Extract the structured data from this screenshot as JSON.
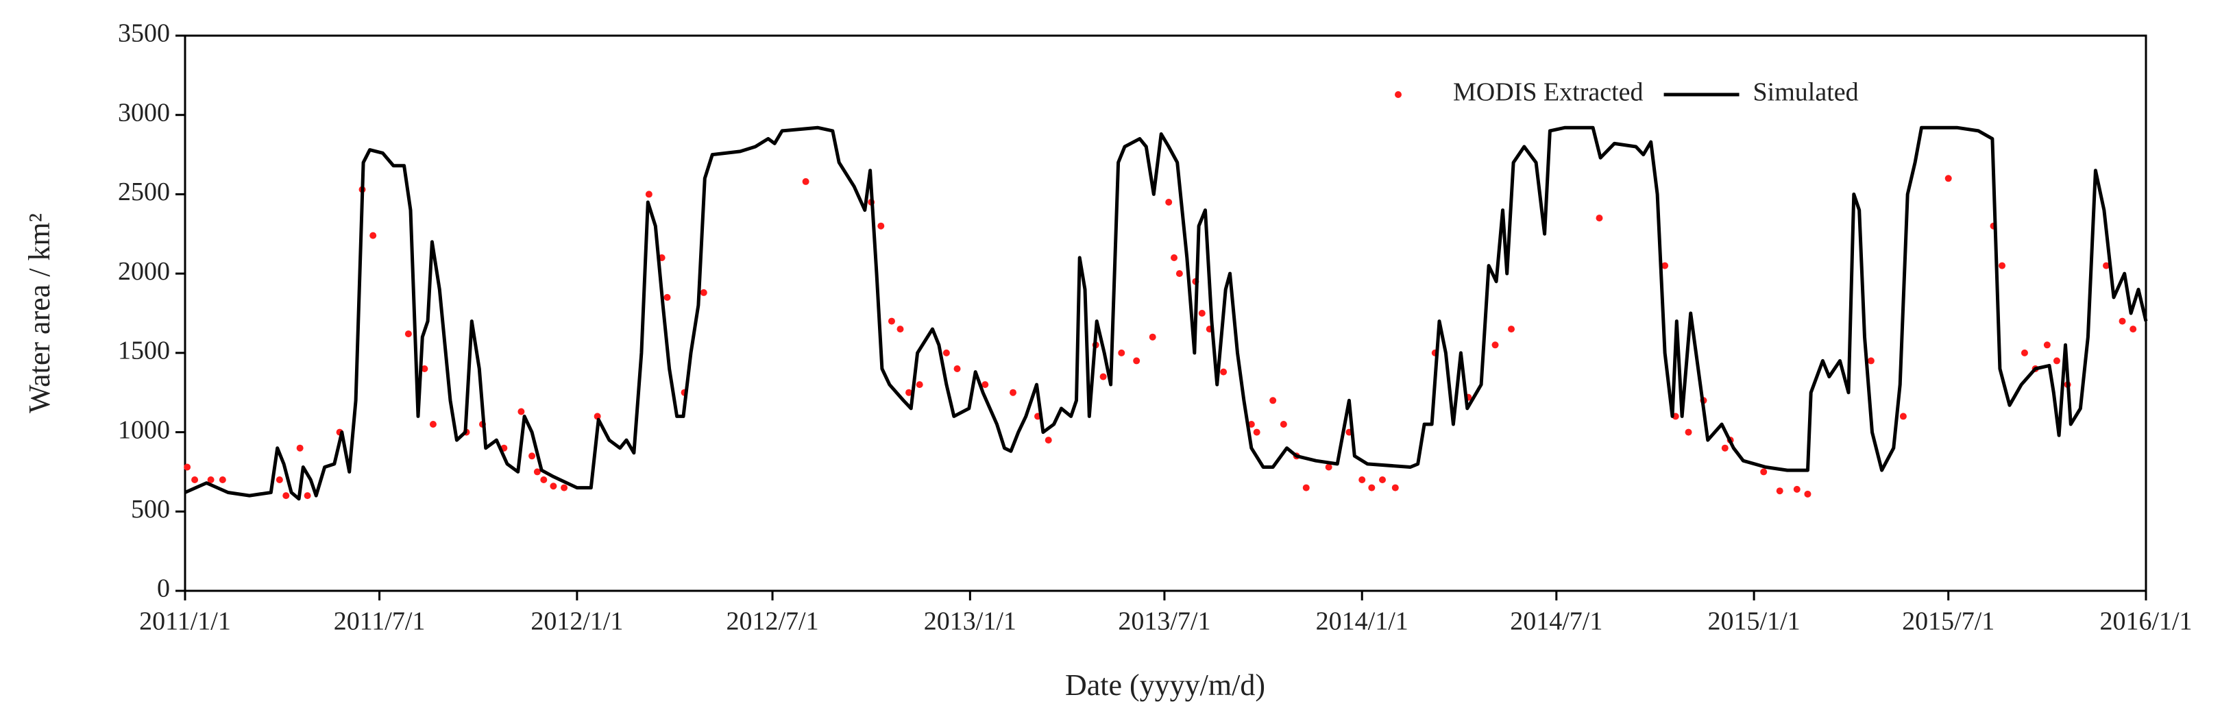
{
  "chart_data": {
    "type": "line",
    "xlabel": "Date (yyyy/m/d)",
    "ylabel": "Water area / km²",
    "xlim": [
      "2011/1/1",
      "2016/1/1"
    ],
    "xticks": [
      "2011/1/1",
      "2011/7/1",
      "2012/1/1",
      "2012/7/1",
      "2013/1/1",
      "2013/7/1",
      "2014/1/1",
      "2014/7/1",
      "2015/1/1",
      "2015/7/1",
      "2016/1/1"
    ],
    "ylim": [
      0,
      3500
    ],
    "yticks": [
      0,
      500,
      1000,
      1500,
      2000,
      2500,
      3000,
      3500
    ],
    "legend": "upper right",
    "series": [
      {
        "name": "MODIS Extracted",
        "type": "scatter",
        "color": "#ff1a1a",
        "x": [
          "2011/1/3",
          "2011/1/10",
          "2011/1/25",
          "2011/2/5",
          "2011/3/30",
          "2011/4/5",
          "2011/4/18",
          "2011/4/25",
          "2011/5/25",
          "2011/6/15",
          "2011/6/25",
          "2011/7/28",
          "2011/8/12",
          "2011/8/20",
          "2011/9/20",
          "2011/10/5",
          "2011/10/25",
          "2011/11/10",
          "2011/11/20",
          "2011/11/25",
          "2011/12/1",
          "2011/12/10",
          "2011/12/20",
          "2012/1/20",
          "2012/3/8",
          "2012/3/20",
          "2012/3/25",
          "2012/4/10",
          "2012/4/28",
          "2012/8/1",
          "2012/10/1",
          "2012/10/10",
          "2012/10/20",
          "2012/10/28",
          "2012/11/5",
          "2012/11/15",
          "2012/12/10",
          "2012/12/20",
          "2013/1/15",
          "2013/2/10",
          "2013/3/5",
          "2013/3/15",
          "2013/4/28",
          "2013/5/5",
          "2013/5/22",
          "2013/6/5",
          "2013/6/20",
          "2013/7/5",
          "2013/7/10",
          "2013/7/15",
          "2013/7/30",
          "2013/8/5",
          "2013/8/12",
          "2013/8/25",
          "2013/9/20",
          "2013/9/25",
          "2013/10/10",
          "2013/10/20",
          "2013/11/1",
          "2013/11/10",
          "2013/12/1",
          "2013/12/20",
          "2014/1/1",
          "2014/1/10",
          "2014/1/20",
          "2014/2/1",
          "2014/3/10",
          "2014/4/10",
          "2014/5/5",
          "2014/5/20",
          "2014/8/10",
          "2014/10/10",
          "2014/10/20",
          "2014/11/1",
          "2014/11/15",
          "2014/12/5",
          "2014/12/10",
          "2015/1/10",
          "2015/1/25",
          "2015/2/10",
          "2015/2/20",
          "2015/4/20",
          "2015/5/20",
          "2015/7/1",
          "2015/8/12",
          "2015/8/20",
          "2015/9/10",
          "2015/9/20",
          "2015/10/1",
          "2015/10/10",
          "2015/10/20",
          "2015/11/25",
          "2015/12/10",
          "2015/12/20"
        ],
        "values": [
          780,
          700,
          700,
          700,
          700,
          600,
          900,
          600,
          1000,
          2530,
          2240,
          1620,
          1400,
          1050,
          1000,
          1050,
          900,
          1130,
          850,
          750,
          700,
          660,
          650,
          1100,
          2500,
          2100,
          1850,
          1250,
          1880,
          2580,
          2450,
          2300,
          1700,
          1650,
          1250,
          1300,
          1500,
          1400,
          1300,
          1250,
          1100,
          950,
          1550,
          1350,
          1500,
          1450,
          1600,
          2450,
          2100,
          2000,
          1950,
          1750,
          1650,
          1380,
          1050,
          1000,
          1200,
          1050,
          850,
          650,
          780,
          1000,
          700,
          650,
          700,
          650,
          1500,
          1220,
          1550,
          1650,
          2350,
          2050,
          1100,
          1000,
          1200,
          900,
          950,
          750,
          630,
          640,
          610,
          1450,
          1100,
          2600,
          2300,
          2050,
          1500,
          1400,
          1550,
          1450,
          1300,
          2050,
          1700,
          1650
        ]
      },
      {
        "name": "Simulated",
        "type": "line",
        "color": "#000000",
        "x": [
          "2011/1/1",
          "2011/1/21",
          "2011/2/10",
          "2011/3/2",
          "2011/3/22",
          "2011/3/28",
          "2011/4/3",
          "2011/4/10",
          "2011/4/17",
          "2011/4/21",
          "2011/4/28",
          "2011/5/3",
          "2011/5/11",
          "2011/5/20",
          "2011/5/27",
          "2011/6/3",
          "2011/6/9",
          "2011/6/16",
          "2011/6/22",
          "2011/7/4",
          "2011/7/14",
          "2011/7/24",
          "2011/7/30",
          "2011/8/6",
          "2011/8/10",
          "2011/8/15",
          "2011/8/19",
          "2011/8/26",
          "2011/9/5",
          "2011/9/11",
          "2011/9/19",
          "2011/9/25",
          "2011/10/2",
          "2011/10/8",
          "2011/10/18",
          "2011/10/28",
          "2011/11/7",
          "2011/11/13",
          "2011/11/20",
          "2011/11/29",
          "2011/12/10",
          "2012/1/1",
          "2012/1/14",
          "2012/1/21",
          "2012/1/31",
          "2012/2/10",
          "2012/2/16",
          "2012/2/23",
          "2012/3/1",
          "2012/3/7",
          "2012/3/14",
          "2012/3/21",
          "2012/3/27",
          "2012/4/3",
          "2012/4/9",
          "2012/4/16",
          "2012/4/23",
          "2012/4/29",
          "2012/5/6",
          "2012/6/1",
          "2012/6/15",
          "2012/6/27",
          "2012/7/3",
          "2012/7/10",
          "2012/8/12",
          "2012/8/26",
          "2012/9/1",
          "2012/9/15",
          "2012/9/25",
          "2012/9/30",
          "2012/10/6",
          "2012/10/11",
          "2012/10/18",
          "2012/10/31",
          "2012/11/7",
          "2012/11/13",
          "2012/11/27",
          "2012/12/3",
          "2012/12/10",
          "2012/12/17",
          "2012/12/31",
          "2013/1/6",
          "2013/1/13",
          "2013/1/26",
          "2013/2/2",
          "2013/2/8",
          "2013/2/15",
          "2013/2/22",
          "2013/3/4",
          "2013/3/10",
          "2013/3/20",
          "2013/3/27",
          "2013/4/5",
          "2013/4/10",
          "2013/4/13",
          "2013/4/18",
          "2013/4/22",
          "2013/4/29",
          "2013/5/6",
          "2013/5/12",
          "2013/5/19",
          "2013/5/25",
          "2013/6/8",
          "2013/6/14",
          "2013/6/21",
          "2013/6/28",
          "2013/7/5",
          "2013/7/13",
          "2013/7/22",
          "2013/7/29",
          "2013/8/2",
          "2013/8/8",
          "2013/8/14",
          "2013/8/19",
          "2013/8/27",
          "2013/8/31",
          "2013/9/7",
          "2013/9/13",
          "2013/9/20",
          "2013/10/1",
          "2013/10/10",
          "2013/10/23",
          "2013/11/1",
          "2013/11/19",
          "2013/12/9",
          "2013/12/20",
          "2013/12/25",
          "2014/1/6",
          "2014/2/15",
          "2014/2/22",
          "2014/2/28",
          "2014/3/7",
          "2014/3/14",
          "2014/3/20",
          "2014/3/27",
          "2014/4/3",
          "2014/4/9",
          "2014/4/22",
          "2014/4/29",
          "2014/5/6",
          "2014/5/12",
          "2014/5/16",
          "2014/5/22",
          "2014/6/1",
          "2014/6/12",
          "2014/6/20",
          "2014/6/25",
          "2014/7/9",
          "2014/8/4",
          "2014/8/11",
          "2014/8/24",
          "2014/9/13",
          "2014/9/20",
          "2014/9/27",
          "2014/10/3",
          "2014/10/10",
          "2014/10/17",
          "2014/10/21",
          "2014/10/26",
          "2014/11/3",
          "2014/11/12",
          "2014/11/19",
          "2014/12/2",
          "2014/12/13",
          "2014/12/22",
          "2015/1/12",
          "2015/2/1",
          "2015/2/20",
          "2015/2/23",
          "2015/3/6",
          "2015/3/12",
          "2015/3/22",
          "2015/3/30",
          "2015/4/4",
          "2015/4/9",
          "2015/4/14",
          "2015/4/21",
          "2015/4/30",
          "2015/5/11",
          "2015/5/17",
          "2015/5/24",
          "2015/5/31",
          "2015/6/6",
          "2015/7/9",
          "2015/7/29",
          "2015/8/11",
          "2015/8/18",
          "2015/8/27",
          "2015/9/7",
          "2015/9/20",
          "2015/10/3",
          "2015/10/7",
          "2015/10/12",
          "2015/10/18",
          "2015/10/23",
          "2015/11/1",
          "2015/11/8",
          "2015/11/15",
          "2015/11/23",
          "2015/12/2",
          "2015/12/12",
          "2015/12/18",
          "2015/12/25",
          "2016/1/1"
        ],
        "values": [
          620,
          680,
          620,
          600,
          620,
          900,
          800,
          620,
          580,
          780,
          700,
          600,
          780,
          800,
          1000,
          750,
          1200,
          2700,
          2780,
          2760,
          2680,
          2680,
          2400,
          1100,
          1600,
          1700,
          2200,
          1900,
          1200,
          950,
          1000,
          1700,
          1400,
          900,
          950,
          800,
          750,
          1100,
          1000,
          760,
          720,
          650,
          650,
          1080,
          950,
          900,
          950,
          870,
          1500,
          2450,
          2300,
          1800,
          1400,
          1100,
          1100,
          1500,
          1800,
          2600,
          2750,
          2770,
          2800,
          2850,
          2820,
          2900,
          2920,
          2900,
          2700,
          2550,
          2400,
          2650,
          2000,
          1400,
          1300,
          1200,
          1150,
          1500,
          1650,
          1550,
          1300,
          1100,
          1150,
          1380,
          1250,
          1050,
          900,
          880,
          1000,
          1100,
          1300,
          1000,
          1050,
          1150,
          1100,
          1200,
          2100,
          1900,
          1100,
          1700,
          1500,
          1300,
          2700,
          2800,
          2850,
          2800,
          2500,
          2880,
          2800,
          2700,
          2100,
          1500,
          2300,
          2400,
          1700,
          1300,
          1900,
          2000,
          1500,
          1200,
          900,
          780,
          780,
          900,
          850,
          820,
          800,
          1200,
          850,
          800,
          780,
          800,
          1050,
          1050,
          1700,
          1500,
          1050,
          1500,
          1150,
          1300,
          2050,
          1950,
          2400,
          2000,
          2700,
          2800,
          2700,
          2250,
          2900,
          2920,
          2920,
          2730,
          2820,
          2800,
          2750,
          2830,
          2500,
          1500,
          1100,
          1700,
          1100,
          1750,
          1300,
          950,
          1050,
          900,
          820,
          780,
          760,
          760,
          1250,
          1450,
          1350,
          1450,
          1250,
          2500,
          2400,
          1600,
          1000,
          760,
          900,
          1300,
          2500,
          2700,
          2920,
          2920,
          2900,
          2850,
          1400,
          1170,
          1300,
          1400,
          1420,
          1250,
          980,
          1550,
          1050,
          1150,
          1600,
          2650,
          2400,
          1850,
          2000,
          1750,
          1900,
          1700
        ]
      }
    ]
  }
}
